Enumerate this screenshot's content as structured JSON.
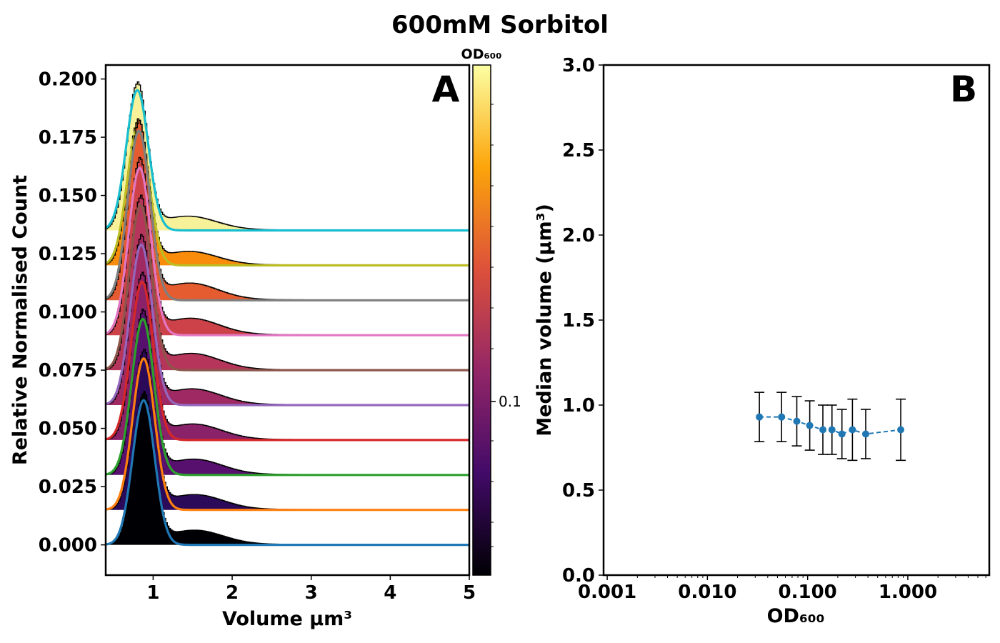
{
  "figure_title": "600mM Sorbitol",
  "chart_data": [
    {
      "panel": "A",
      "type": "area",
      "xlabel": "Volume µm³",
      "ylabel": "Relative Normalised Count",
      "xlim": [
        0.4,
        5.0
      ],
      "ylim": [
        -0.013,
        0.206
      ],
      "xticks": [
        "1",
        "2",
        "3",
        "4",
        "5"
      ],
      "yticks": [
        "0.000",
        "0.025",
        "0.050",
        "0.075",
        "0.100",
        "0.125",
        "0.150",
        "0.175",
        "0.200"
      ],
      "stack_offset_step": 0.015,
      "colorbar": {
        "label": "OD₆₀₀",
        "scale": "log",
        "tick_labels": [
          "0.1"
        ],
        "colors": [
          "#000004",
          "#420a68",
          "#932667",
          "#dd513a",
          "#fca50a",
          "#fcffa4"
        ]
      },
      "series": [
        {
          "od600": 0.033,
          "offset": 0.0,
          "peak_x": 0.88,
          "peak_y": 0.064,
          "fill": "#000004",
          "fit_color": "#1f77b4"
        },
        {
          "od600": 0.055,
          "offset": 0.015,
          "peak_x": 0.88,
          "peak_y": 0.067,
          "fill": "#2b0a5a",
          "fit_color": "#ff7f0e"
        },
        {
          "od600": 0.078,
          "offset": 0.03,
          "peak_x": 0.87,
          "peak_y": 0.069,
          "fill": "#57106e",
          "fit_color": "#2ca02c"
        },
        {
          "od600": 0.105,
          "offset": 0.045,
          "peak_x": 0.86,
          "peak_y": 0.07,
          "fill": "#8a226a",
          "fit_color": "#d62728"
        },
        {
          "od600": 0.142,
          "offset": 0.06,
          "peak_x": 0.85,
          "peak_y": 0.071,
          "fill": "#9f2a63",
          "fit_color": "#9467bd"
        },
        {
          "od600": 0.175,
          "offset": 0.075,
          "peak_x": 0.84,
          "peak_y": 0.073,
          "fill": "#b5365a",
          "fit_color": "#8c564b"
        },
        {
          "od600": 0.22,
          "offset": 0.09,
          "peak_x": 0.83,
          "peak_y": 0.074,
          "fill": "#cc4248",
          "fit_color": "#e377c2"
        },
        {
          "od600": 0.28,
          "offset": 0.105,
          "peak_x": 0.82,
          "peak_y": 0.075,
          "fill": "#e55c30",
          "fit_color": "#7f7f7f"
        },
        {
          "od600": 0.38,
          "offset": 0.12,
          "peak_x": 0.81,
          "peak_y": 0.061,
          "fill": "#f98c0a",
          "fit_color": "#bcbd22"
        },
        {
          "od600": 0.85,
          "offset": 0.135,
          "peak_x": 0.8,
          "peak_y": 0.062,
          "fill": "#f7f19a",
          "fit_color": "#17becf"
        }
      ]
    },
    {
      "panel": "B",
      "type": "scatter",
      "xlabel": "OD₆₀₀",
      "ylabel": "Median volume (µm³)",
      "xscale": "log",
      "xlim": [
        0.00092,
        6.5
      ],
      "ylim": [
        0.0,
        3.0
      ],
      "xticks": [
        "0.001",
        "0.010",
        "0.100",
        "1.000"
      ],
      "yticks": [
        "0.0",
        "0.5",
        "1.0",
        "1.5",
        "2.0",
        "2.5",
        "3.0"
      ],
      "color": "#1f77b4",
      "line_style": "dashed",
      "x": [
        0.033,
        0.055,
        0.078,
        0.105,
        0.142,
        0.175,
        0.22,
        0.28,
        0.38,
        0.85
      ],
      "y": [
        0.93,
        0.93,
        0.905,
        0.88,
        0.855,
        0.855,
        0.83,
        0.855,
        0.83,
        0.855
      ],
      "yerr": [
        0.145,
        0.145,
        0.145,
        0.145,
        0.145,
        0.145,
        0.145,
        0.18,
        0.145,
        0.18
      ]
    }
  ]
}
